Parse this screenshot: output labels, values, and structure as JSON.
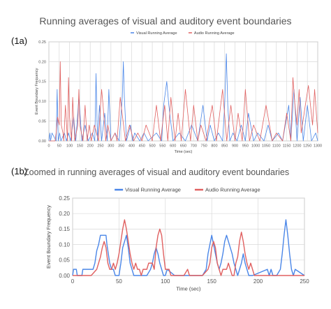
{
  "figure": {
    "panel_a_tag": "(1a)",
    "panel_b_tag": "(1b)",
    "panel_a_title": "Running averages of visual and auditory event boundaries",
    "panel_b_title": "Zoomed in running averages of visual and auditory event boundaries"
  },
  "colors": {
    "visual": "#4a86e8",
    "audio": "#e06060",
    "grid": "#d9d9d9",
    "axis": "#999999"
  },
  "chart_data": [
    {
      "id": "1a",
      "type": "line",
      "title": "Running averages of visual and auditory event boundaries",
      "xlabel": "Time (sec)",
      "ylabel": "Event Boundary Frequency",
      "xlim": [
        0,
        1300
      ],
      "ylim": [
        0,
        0.25
      ],
      "xticks": [
        0,
        50,
        100,
        150,
        200,
        250,
        300,
        350,
        400,
        450,
        500,
        550,
        600,
        650,
        700,
        750,
        800,
        850,
        900,
        950,
        1000,
        1050,
        1100,
        1150,
        1200,
        1250,
        1300
      ],
      "yticks": [
        0,
        0.05,
        0.1,
        0.15,
        0.2,
        0.25
      ],
      "ytick_labels": [
        "0.00",
        "0.05",
        "0.10",
        "0.15",
        "0.20",
        "0.25"
      ],
      "grid": true,
      "legend": "top",
      "series": [
        {
          "name": "Visual Running Average",
          "color": "#4a86e8",
          "x": [
            0,
            5,
            8,
            15,
            35,
            40,
            45,
            52,
            58,
            75,
            85,
            95,
            105,
            120,
            130,
            145,
            160,
            175,
            190,
            210,
            222,
            228,
            235,
            245,
            255,
            270,
            282,
            290,
            300,
            320,
            340,
            355,
            360,
            365,
            375,
            395,
            405,
            415,
            440,
            460,
            480,
            520,
            545,
            555,
            570,
            580,
            600,
            630,
            660,
            690,
            720,
            745,
            765,
            780,
            800,
            820,
            840,
            850,
            858,
            865,
            875,
            890,
            910,
            930,
            950,
            965,
            990,
            1010,
            1040,
            1060,
            1080,
            1110,
            1130,
            1160,
            1170,
            1185,
            1200,
            1215,
            1230,
            1250,
            1270,
            1290,
            1300
          ],
          "y": [
            0,
            0.02,
            0,
            0.02,
            0,
            0.13,
            0,
            0.02,
            0,
            0.02,
            0,
            0.02,
            0,
            0.06,
            0,
            0.11,
            0,
            0.04,
            0,
            0.02,
            0,
            0.17,
            0,
            0.09,
            0,
            0.07,
            0,
            0.13,
            0,
            0.02,
            0,
            0.11,
            0.2,
            0.11,
            0,
            0.04,
            0,
            0.02,
            0,
            0.02,
            0,
            0.02,
            0,
            0.09,
            0.15,
            0.09,
            0,
            0.02,
            0,
            0.04,
            0,
            0.09,
            0,
            0.04,
            0,
            0.02,
            0,
            0.09,
            0.22,
            0.09,
            0,
            0.02,
            0,
            0.04,
            0,
            0.07,
            0,
            0.02,
            0,
            0.04,
            0,
            0.02,
            0,
            0.09,
            0,
            0.13,
            0,
            0.11,
            0,
            0.09,
            0,
            0.02,
            0
          ]
        },
        {
          "name": "Audio Running Average",
          "color": "#e06060",
          "x": [
            0,
            30,
            35,
            42,
            50,
            55,
            60,
            68,
            72,
            80,
            90,
            92,
            95,
            100,
            110,
            115,
            125,
            140,
            145,
            150,
            165,
            175,
            185,
            195,
            205,
            220,
            240,
            250,
            255,
            262,
            275,
            285,
            300,
            320,
            330,
            345,
            370,
            390,
            410,
            430,
            450,
            470,
            500,
            520,
            540,
            560,
            575,
            590,
            610,
            625,
            640,
            660,
            685,
            700,
            720,
            735,
            760,
            790,
            810,
            840,
            860,
            880,
            900,
            915,
            935,
            950,
            970,
            990,
            1020,
            1050,
            1080,
            1100,
            1130,
            1150,
            1170,
            1180,
            1190,
            1200,
            1210,
            1220,
            1240,
            1255,
            1275,
            1285,
            1300
          ],
          "y": [
            0,
            0,
            0.02,
            0.06,
            0.04,
            0.2,
            0.04,
            0.02,
            0,
            0.09,
            0,
            0.06,
            0.16,
            0.06,
            0,
            0.11,
            0,
            0.04,
            0.13,
            0.04,
            0,
            0.09,
            0,
            0.04,
            0,
            0.04,
            0,
            0.09,
            0.13,
            0.09,
            0,
            0.04,
            0,
            0.02,
            0,
            0.11,
            0,
            0.04,
            0,
            0.02,
            0,
            0.04,
            0,
            0.09,
            0,
            0.09,
            0,
            0.11,
            0,
            0.07,
            0,
            0.13,
            0,
            0.09,
            0,
            0.04,
            0,
            0.09,
            0,
            0.13,
            0,
            0.09,
            0,
            0.07,
            0,
            0.13,
            0,
            0.04,
            0,
            0.09,
            0,
            0.02,
            0,
            0.07,
            0,
            0.16,
            0.09,
            0.04,
            0.13,
            0.02,
            0.09,
            0.14,
            0.04,
            0.13,
            0.02
          ]
        }
      ]
    },
    {
      "id": "1b",
      "type": "line",
      "title": "Zoomed in running averages of visual and auditory event boundaries",
      "xlabel": "Time (sec)",
      "ylabel": "Event Boundary Frequency",
      "xlim": [
        0,
        250
      ],
      "ylim": [
        0,
        0.25
      ],
      "xticks": [
        0,
        50,
        100,
        150,
        200,
        250
      ],
      "yticks": [
        0,
        0.05,
        0.1,
        0.15,
        0.2,
        0.25
      ],
      "ytick_labels": [
        "0.00",
        "0.05",
        "0.10",
        "0.15",
        "0.20",
        "0.25"
      ],
      "grid": true,
      "legend": "top",
      "series": [
        {
          "name": "Visual Running Average",
          "color": "#4a86e8",
          "x": [
            0,
            1,
            2,
            4,
            5,
            10,
            11,
            22,
            24,
            26,
            28,
            30,
            32,
            33,
            36,
            37,
            38,
            40,
            42,
            44,
            46,
            50,
            52,
            54,
            56,
            58,
            60,
            62,
            64,
            66,
            70,
            80,
            84,
            86,
            88,
            90,
            92,
            94,
            96,
            98,
            100,
            102,
            110,
            140,
            144,
            146,
            148,
            150,
            152,
            154,
            156,
            158,
            160,
            162,
            164,
            166,
            168,
            172,
            174,
            176,
            178,
            180,
            182,
            184,
            186,
            188,
            190,
            192,
            194,
            210,
            212,
            214,
            216,
            220,
            224,
            226,
            228,
            230,
            232,
            234,
            236,
            238,
            240,
            250
          ],
          "y": [
            0,
            0.02,
            0.02,
            0.02,
            0,
            0,
            0.02,
            0.02,
            0.04,
            0.08,
            0.1,
            0.13,
            0.13,
            0.13,
            0.13,
            0.1,
            0.08,
            0.04,
            0.02,
            0.02,
            0,
            0,
            0.04,
            0.09,
            0.11,
            0.13,
            0.09,
            0.04,
            0.02,
            0,
            0,
            0,
            0.02,
            0.04,
            0.07,
            0.09,
            0.07,
            0.04,
            0.02,
            0,
            0,
            0.02,
            0,
            0,
            0.02,
            0.07,
            0.1,
            0.13,
            0.1,
            0.07,
            0.04,
            0.02,
            0.04,
            0.07,
            0.11,
            0.13,
            0.11,
            0.07,
            0.04,
            0.02,
            0,
            0.02,
            0.04,
            0.07,
            0.04,
            0.02,
            0,
            0,
            0,
            0.02,
            0,
            0.02,
            0,
            0,
            0.02,
            0.07,
            0.13,
            0.18,
            0.13,
            0.07,
            0.02,
            0,
            0.02,
            0
          ]
        },
        {
          "name": "Audio Running Average",
          "color": "#e06060",
          "x": [
            0,
            20,
            26,
            28,
            30,
            32,
            34,
            36,
            38,
            40,
            42,
            44,
            46,
            48,
            50,
            52,
            54,
            56,
            58,
            60,
            62,
            64,
            66,
            68,
            70,
            72,
            74,
            76,
            78,
            80,
            82,
            84,
            86,
            88,
            90,
            92,
            94,
            96,
            98,
            100,
            102,
            104,
            106,
            110,
            120,
            124,
            126,
            130,
            140,
            146,
            148,
            150,
            152,
            154,
            156,
            158,
            160,
            162,
            166,
            168,
            170,
            172,
            174,
            176,
            178,
            180,
            182,
            184,
            186,
            188,
            190,
            192,
            194,
            196,
            198,
            200,
            210,
            250
          ],
          "y": [
            0,
            0,
            0.02,
            0.04,
            0.06,
            0.09,
            0.11,
            0.09,
            0.04,
            0.02,
            0.02,
            0.04,
            0.02,
            0.04,
            0.07,
            0.11,
            0.15,
            0.18,
            0.15,
            0.11,
            0.07,
            0.04,
            0.02,
            0.04,
            0.02,
            0.02,
            0,
            0.02,
            0.02,
            0.02,
            0.04,
            0.04,
            0.04,
            0.02,
            0.09,
            0.13,
            0.15,
            0.13,
            0.07,
            0.02,
            0.02,
            0.02,
            0,
            0,
            0,
            0.02,
            0,
            0,
            0,
            0.02,
            0.04,
            0.09,
            0.11,
            0.09,
            0.04,
            0.02,
            0,
            0.02,
            0.02,
            0.04,
            0.02,
            0,
            0,
            0.04,
            0.06,
            0.11,
            0.14,
            0.11,
            0.07,
            0.04,
            0.02,
            0.04,
            0.02,
            0,
            0,
            0,
            0,
            0
          ]
        }
      ]
    }
  ]
}
